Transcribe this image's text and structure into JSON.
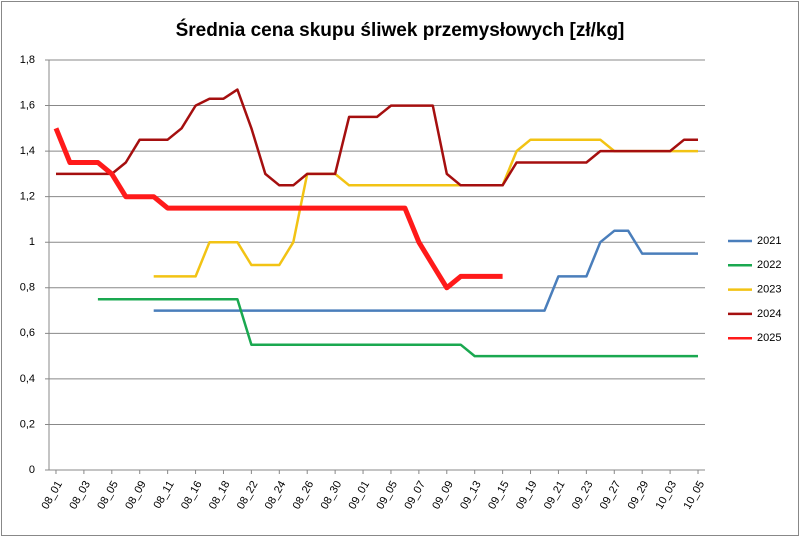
{
  "chart_data": {
    "type": "line",
    "title": "Średnia cena skupu śliwek przemysłowych [zł/kg]",
    "categories": [
      "08_01",
      null,
      "08_03",
      null,
      "08_05",
      null,
      "08_09",
      null,
      "08_11",
      null,
      "08_16",
      null,
      "08_18",
      null,
      "08_22",
      null,
      "08_24",
      null,
      "08_26",
      null,
      "08_30",
      null,
      "09_01",
      null,
      "09_05",
      null,
      "09_07",
      null,
      "09_09",
      null,
      "09_13",
      null,
      "09_15",
      null,
      "09_19",
      null,
      "09_21",
      null,
      "09_23",
      null,
      "09_27",
      null,
      "09_29",
      null,
      "10_03",
      null,
      "10_05"
    ],
    "series": [
      {
        "name": "2021",
        "color": "#4a7ebb",
        "values": [
          null,
          null,
          null,
          null,
          null,
          null,
          null,
          0.7,
          0.7,
          0.7,
          0.7,
          0.7,
          0.7,
          0.7,
          0.7,
          0.7,
          0.7,
          0.7,
          0.7,
          0.7,
          0.7,
          0.7,
          0.7,
          0.7,
          0.7,
          0.7,
          0.7,
          0.7,
          0.7,
          0.7,
          0.7,
          0.7,
          0.7,
          0.7,
          0.7,
          0.7,
          0.85,
          0.85,
          0.85,
          1.0,
          1.05,
          1.05,
          0.95,
          0.95,
          0.95,
          0.95,
          0.95
        ]
      },
      {
        "name": "2022",
        "color": "#1aa850",
        "values": [
          null,
          null,
          null,
          0.75,
          0.75,
          0.75,
          0.75,
          0.75,
          0.75,
          0.75,
          0.75,
          0.75,
          0.75,
          0.75,
          0.55,
          0.55,
          0.55,
          0.55,
          0.55,
          0.55,
          0.55,
          0.55,
          0.55,
          0.55,
          0.55,
          0.55,
          0.55,
          0.55,
          0.55,
          0.55,
          0.5,
          0.5,
          0.5,
          0.5,
          0.5,
          0.5,
          0.5,
          0.5,
          0.5,
          0.5,
          0.5,
          0.5,
          0.5,
          0.5,
          0.5,
          0.5,
          0.5
        ]
      },
      {
        "name": "2023",
        "color": "#f2c314",
        "values": [
          null,
          null,
          null,
          null,
          null,
          null,
          null,
          0.85,
          0.85,
          0.85,
          0.85,
          1.0,
          1.0,
          1.0,
          0.9,
          0.9,
          0.9,
          1.0,
          1.3,
          1.3,
          1.3,
          1.25,
          1.25,
          1.25,
          1.25,
          1.25,
          1.25,
          1.25,
          1.25,
          1.25,
          1.25,
          1.25,
          1.25,
          1.4,
          1.45,
          1.45,
          1.45,
          1.45,
          1.45,
          1.45,
          1.4,
          1.4,
          1.4,
          1.4,
          1.4,
          1.4,
          1.4
        ]
      },
      {
        "name": "2024",
        "color": "#a50f0f",
        "values": [
          1.3,
          1.3,
          1.3,
          1.3,
          1.3,
          1.35,
          1.45,
          1.45,
          1.45,
          1.5,
          1.6,
          1.63,
          1.63,
          1.67,
          1.5,
          1.3,
          1.25,
          1.25,
          1.3,
          1.3,
          1.3,
          1.55,
          1.55,
          1.55,
          1.6,
          1.6,
          1.6,
          1.6,
          1.3,
          1.25,
          1.25,
          1.25,
          1.25,
          1.35,
          1.35,
          1.35,
          1.35,
          1.35,
          1.35,
          1.4,
          1.4,
          1.4,
          1.4,
          1.4,
          1.4,
          1.45,
          1.45
        ]
      },
      {
        "name": "2025",
        "color": "#ff1a1a",
        "values": [
          1.5,
          1.35,
          1.35,
          1.35,
          1.3,
          1.2,
          1.2,
          1.2,
          1.15,
          1.15,
          1.15,
          1.15,
          1.15,
          1.15,
          1.15,
          1.15,
          1.15,
          1.15,
          1.15,
          1.15,
          1.15,
          1.15,
          1.15,
          1.15,
          1.15,
          1.15,
          1.0,
          0.9,
          0.8,
          0.85,
          0.85,
          0.85,
          0.85,
          null,
          null,
          null,
          null,
          null,
          null,
          null,
          null,
          null,
          null,
          null,
          null,
          null,
          null
        ]
      }
    ],
    "ylim": [
      0,
      1.8
    ],
    "yticks": [
      0,
      {
        "value": 0.2,
        "label": "0,2"
      },
      {
        "value": 0.4,
        "label": "0,4"
      },
      {
        "value": 0.6,
        "label": "0,6"
      },
      {
        "value": 0.8,
        "label": "0,8"
      },
      1,
      {
        "value": 1.2,
        "label": "1,2"
      },
      {
        "value": 1.4,
        "label": "1,4"
      },
      {
        "value": 1.6,
        "label": "1,6"
      },
      {
        "value": 1.8,
        "label": "1,8"
      }
    ],
    "grid": true,
    "legend": "right"
  }
}
